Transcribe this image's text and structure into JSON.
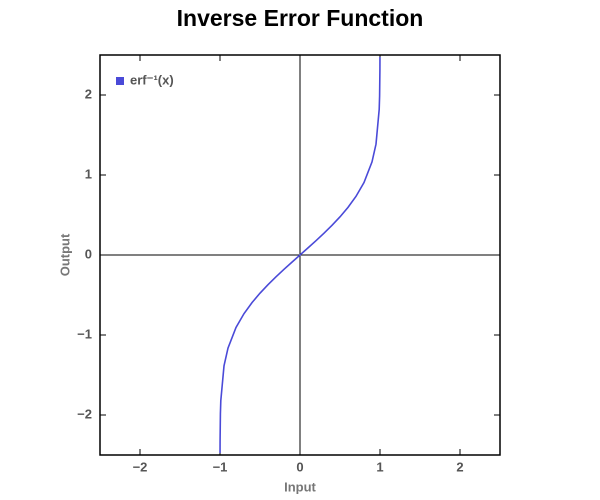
{
  "chart_data": {
    "type": "line",
    "title": "Inverse Error Function",
    "x_label": "Input",
    "y_label": "Output",
    "x": [
      -0.9995,
      -0.999,
      -0.995,
      -0.99,
      -0.95,
      -0.9,
      -0.8,
      -0.7,
      -0.6,
      -0.5,
      -0.4,
      -0.3,
      -0.2,
      -0.1,
      0,
      0.1,
      0.2,
      0.3,
      0.4,
      0.5,
      0.6,
      0.7,
      0.8,
      0.9,
      0.95,
      0.99,
      0.995,
      0.999,
      0.9995
    ],
    "series": [
      {
        "name": "erf⁻¹(x)",
        "color": "#4a4ad8",
        "values": [
          -2.4747,
          -2.3268,
          -1.9849,
          -1.8214,
          -1.3859,
          -1.1631,
          -0.9062,
          -0.7329,
          -0.5951,
          -0.4769,
          -0.3708,
          -0.2725,
          -0.1791,
          -0.0889,
          0,
          0.0889,
          0.1791,
          0.2725,
          0.3708,
          0.4769,
          0.5951,
          0.7329,
          0.9062,
          1.1631,
          1.3859,
          1.8214,
          1.9849,
          2.3268,
          2.4747
        ]
      }
    ],
    "xlim": [
      -2.5,
      2.5
    ],
    "ylim": [
      -2.5,
      2.5
    ],
    "xticks": [
      {
        "value": -2,
        "label": "−2"
      },
      {
        "value": -1,
        "label": "−1"
      },
      0,
      1,
      2
    ],
    "yticks": [
      {
        "value": -2,
        "label": "−2"
      },
      {
        "value": -1,
        "label": "−1"
      },
      0,
      1,
      2
    ],
    "legend": "upper left"
  }
}
